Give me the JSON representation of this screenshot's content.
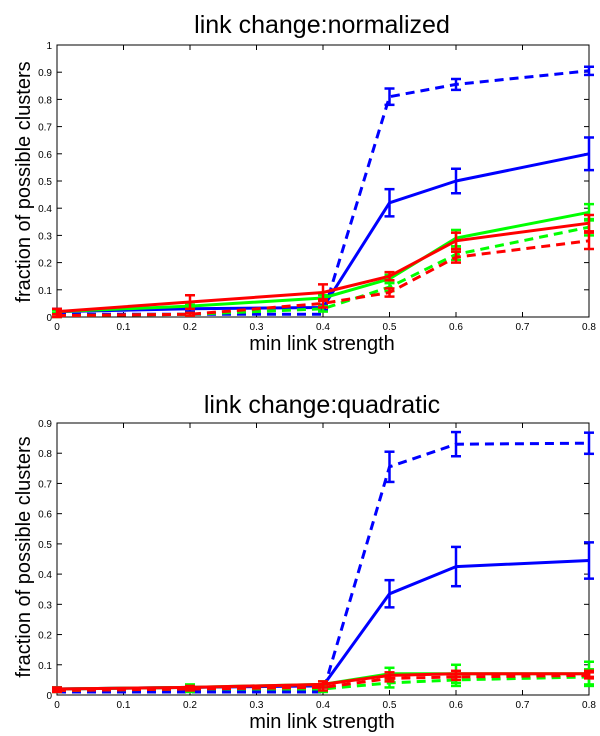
{
  "chart_data": [
    {
      "type": "line",
      "title": "link change:normalized",
      "xlabel": "min link strength",
      "ylabel": "fraction of possible clusters",
      "xlim": [
        0,
        0.8
      ],
      "ylim": [
        0,
        1
      ],
      "xticks": [
        "0",
        "0.1",
        "0.2",
        "0.3",
        "0.4",
        "0.5",
        "0.6",
        "0.7",
        "0.8"
      ],
      "yticks": [
        "0",
        "0.1",
        "0.2",
        "0.3",
        "0.4",
        "0.5",
        "0.6",
        "0.7",
        "0.8",
        "0.9",
        "1"
      ],
      "x": [
        0,
        0.2,
        0.4,
        0.5,
        0.6,
        0.8
      ],
      "grid": false,
      "series": [
        {
          "color": "#0000ff",
          "dash": true,
          "values": [
            0.01,
            0.01,
            0.01,
            0.81,
            0.855,
            0.905
          ],
          "err": [
            0,
            0,
            0,
            0.03,
            0.02,
            0.015
          ]
        },
        {
          "color": "#0000ff",
          "dash": false,
          "values": [
            0.02,
            0.03,
            0.035,
            0.42,
            0.5,
            0.6
          ],
          "err": [
            0.01,
            0.01,
            0.01,
            0.05,
            0.045,
            0.06
          ]
        },
        {
          "color": "#00ff00",
          "dash": false,
          "values": [
            0.02,
            0.04,
            0.07,
            0.14,
            0.29,
            0.385
          ],
          "err": [
            0.005,
            0.005,
            0.01,
            0.015,
            0.03,
            0.03
          ]
        },
        {
          "color": "#00ff00",
          "dash": true,
          "values": [
            0.005,
            0.01,
            0.03,
            0.11,
            0.23,
            0.33
          ],
          "err": [
            0.005,
            0.005,
            0.01,
            0.015,
            0.02,
            0.03
          ]
        },
        {
          "color": "#ff0000",
          "dash": false,
          "values": [
            0.02,
            0.055,
            0.09,
            0.15,
            0.28,
            0.345
          ],
          "err": [
            0.01,
            0.025,
            0.03,
            0.015,
            0.03,
            0.03
          ]
        },
        {
          "color": "#ff0000",
          "dash": true,
          "values": [
            0.005,
            0.01,
            0.05,
            0.09,
            0.22,
            0.28
          ],
          "err": [
            0.005,
            0.005,
            0.015,
            0.015,
            0.02,
            0.03
          ]
        }
      ]
    },
    {
      "type": "line",
      "title": "link change:quadratic",
      "xlabel": "min link strength",
      "ylabel": "fraction of possible clusters",
      "xlim": [
        0,
        0.8
      ],
      "ylim": [
        0,
        0.9
      ],
      "xticks": [
        "0",
        "0.1",
        "0.2",
        "0.3",
        "0.4",
        "0.5",
        "0.6",
        "0.7",
        "0.8"
      ],
      "yticks": [
        "0",
        "0.1",
        "0.2",
        "0.3",
        "0.4",
        "0.5",
        "0.6",
        "0.7",
        "0.8",
        "0.9"
      ],
      "x": [
        0,
        0.2,
        0.4,
        0.5,
        0.6,
        0.8
      ],
      "grid": false,
      "series": [
        {
          "color": "#0000ff",
          "dash": true,
          "values": [
            0.01,
            0.01,
            0.01,
            0.755,
            0.83,
            0.833
          ],
          "err": [
            0,
            0,
            0,
            0.05,
            0.04,
            0.035
          ]
        },
        {
          "color": "#0000ff",
          "dash": false,
          "values": [
            0.02,
            0.025,
            0.03,
            0.335,
            0.425,
            0.445
          ],
          "err": [
            0.005,
            0.005,
            0.005,
            0.045,
            0.065,
            0.06
          ]
        },
        {
          "color": "#00ff00",
          "dash": false,
          "values": [
            0.02,
            0.025,
            0.035,
            0.07,
            0.07,
            0.07
          ],
          "err": [
            0.005,
            0.01,
            0.01,
            0.02,
            0.03,
            0.04
          ]
        },
        {
          "color": "#00ff00",
          "dash": true,
          "values": [
            0.015,
            0.02,
            0.02,
            0.04,
            0.05,
            0.06
          ],
          "err": [
            0.005,
            0.01,
            0.01,
            0.015,
            0.02,
            0.025
          ]
        },
        {
          "color": "#ff0000",
          "dash": false,
          "values": [
            0.02,
            0.025,
            0.035,
            0.065,
            0.07,
            0.07
          ],
          "err": [
            0.005,
            0.005,
            0.01,
            0.01,
            0.01,
            0.01
          ]
        },
        {
          "color": "#ff0000",
          "dash": true,
          "values": [
            0.015,
            0.02,
            0.025,
            0.055,
            0.06,
            0.065
          ],
          "err": [
            0.005,
            0.005,
            0.01,
            0.01,
            0.01,
            0.01
          ]
        }
      ]
    }
  ]
}
